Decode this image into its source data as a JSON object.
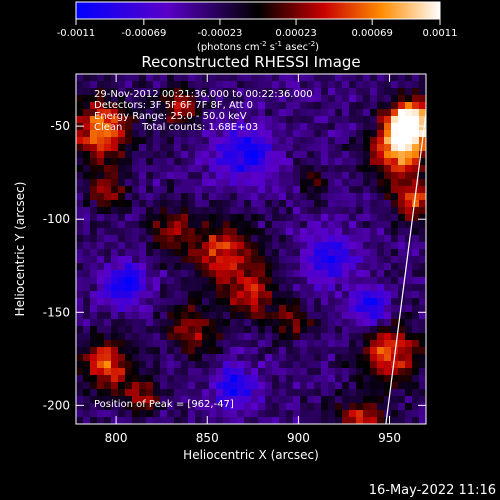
{
  "chart_data": {
    "type": "heatmap",
    "title": "Reconstructed RHESSI Image",
    "xlabel": "Heliocentric X (arcsec)",
    "ylabel": "Heliocentric Y (arcsec)",
    "xlim": [
      778,
      970
    ],
    "ylim": [
      -210,
      -22
    ],
    "x_ticks": [
      800,
      850,
      900,
      950
    ],
    "y_ticks": [
      -50,
      -100,
      -150,
      -200
    ],
    "x_tick_labels": [
      "800",
      "850",
      "900",
      "950"
    ],
    "y_tick_labels": [
      "-50",
      "-100",
      "-150",
      "-200"
    ],
    "colorbar": {
      "min": -0.0011,
      "max": 0.0011,
      "ticks": [
        -0.0011,
        -0.00069,
        -0.00023,
        0.00023,
        0.00069,
        0.0011
      ],
      "tick_labels": [
        "-0.0011",
        "-0.00069",
        "-0.00023",
        "0.00023",
        "0.00069",
        "0.0011"
      ],
      "unit_parts": [
        "(photons cm",
        "-2",
        " s",
        "-1",
        " asec",
        "-2",
        ")"
      ]
    },
    "grid": false,
    "annotations": {
      "time_range": "29-Nov-2012 00:21:36.000 to 00:22:36.000",
      "detectors": "Detectors: 3F 5F 6F 7F 8F, Att 0",
      "energy_range": "Energy Range: 25.0 - 50.0 keV",
      "algorithm": "Clean",
      "total_counts": "Total counts: 1.68E+03",
      "peak_position": "Position of Peak = [962,-47]"
    },
    "limb_line": {
      "x": [
        948,
        970
      ],
      "y": [
        -210,
        -43
      ]
    },
    "sources": [
      {
        "x": 962,
        "y": -47,
        "r": 12,
        "a": 1.0
      },
      {
        "x": 955,
        "y": -62,
        "r": 15,
        "a": 0.85
      },
      {
        "x": 963,
        "y": -90,
        "r": 11,
        "a": 0.6
      },
      {
        "x": 792,
        "y": -52,
        "r": 16,
        "a": 0.75
      },
      {
        "x": 835,
        "y": -40,
        "r": 10,
        "a": 0.5
      },
      {
        "x": 795,
        "y": -85,
        "r": 10,
        "a": 0.45
      },
      {
        "x": 858,
        "y": -118,
        "r": 18,
        "a": 0.55
      },
      {
        "x": 830,
        "y": -105,
        "r": 12,
        "a": 0.4
      },
      {
        "x": 875,
        "y": -140,
        "r": 14,
        "a": 0.5
      },
      {
        "x": 842,
        "y": -160,
        "r": 14,
        "a": 0.45
      },
      {
        "x": 795,
        "y": -178,
        "r": 14,
        "a": 0.65
      },
      {
        "x": 815,
        "y": -195,
        "r": 10,
        "a": 0.45
      },
      {
        "x": 950,
        "y": -172,
        "r": 16,
        "a": 0.65
      },
      {
        "x": 935,
        "y": -210,
        "r": 14,
        "a": 0.55
      },
      {
        "x": 898,
        "y": -155,
        "r": 10,
        "a": 0.35
      },
      {
        "x": 910,
        "y": -80,
        "r": 8,
        "a": 0.3
      }
    ],
    "sinks": [
      {
        "x": 870,
        "y": -65,
        "r": 16,
        "a": 0.3
      },
      {
        "x": 805,
        "y": -135,
        "r": 12,
        "a": 0.35
      },
      {
        "x": 918,
        "y": -120,
        "r": 14,
        "a": 0.3
      },
      {
        "x": 940,
        "y": -148,
        "r": 10,
        "a": 0.35
      },
      {
        "x": 865,
        "y": -190,
        "r": 12,
        "a": 0.3
      }
    ]
  },
  "footer": {
    "timestamp": "16-May-2022 11:16"
  }
}
